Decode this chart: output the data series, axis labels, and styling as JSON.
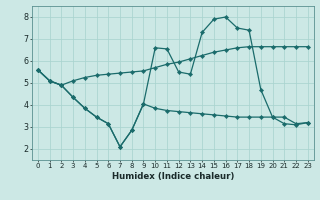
{
  "xlabel": "Humidex (Indice chaleur)",
  "bg_color": "#cce8e5",
  "grid_color": "#aad4cf",
  "line_color": "#1a6b6b",
  "xlim": [
    -0.5,
    23.5
  ],
  "ylim": [
    1.5,
    8.5
  ],
  "xticks": [
    0,
    1,
    2,
    3,
    4,
    5,
    6,
    7,
    8,
    9,
    10,
    11,
    12,
    13,
    14,
    15,
    16,
    17,
    18,
    19,
    20,
    21,
    22,
    23
  ],
  "yticks": [
    2,
    3,
    4,
    5,
    6,
    7,
    8
  ],
  "line1_x": [
    0,
    1,
    2,
    3,
    4,
    5,
    6,
    7,
    8,
    9,
    10,
    11,
    12,
    13,
    14,
    15,
    16,
    17,
    18,
    19,
    20,
    21,
    22,
    23
  ],
  "line1_y": [
    5.6,
    5.1,
    4.9,
    5.1,
    5.25,
    5.35,
    5.4,
    5.45,
    5.5,
    5.55,
    5.7,
    5.85,
    5.95,
    6.1,
    6.25,
    6.4,
    6.5,
    6.6,
    6.65,
    6.65,
    6.65,
    6.65,
    6.65,
    6.65
  ],
  "line2_x": [
    0,
    1,
    2,
    3,
    4,
    5,
    6,
    7,
    8,
    9,
    10,
    11,
    12,
    13,
    14,
    15,
    16,
    17,
    18,
    19,
    20,
    21,
    22,
    23
  ],
  "line2_y": [
    5.6,
    5.1,
    4.9,
    4.35,
    3.85,
    3.45,
    3.15,
    2.1,
    2.85,
    4.05,
    6.6,
    6.55,
    5.5,
    5.4,
    7.3,
    7.9,
    8.0,
    7.5,
    7.4,
    4.7,
    3.45,
    3.15,
    3.1,
    3.2
  ],
  "line3_x": [
    0,
    1,
    2,
    3,
    4,
    5,
    6,
    7,
    8,
    9,
    10,
    11,
    12,
    13,
    14,
    15,
    16,
    17,
    18,
    19,
    20,
    21,
    22,
    23
  ],
  "line3_y": [
    5.6,
    5.1,
    4.9,
    4.35,
    3.85,
    3.45,
    3.15,
    2.1,
    2.85,
    4.05,
    3.85,
    3.75,
    3.7,
    3.65,
    3.6,
    3.55,
    3.5,
    3.45,
    3.45,
    3.45,
    3.45,
    3.45,
    3.15,
    3.2
  ]
}
